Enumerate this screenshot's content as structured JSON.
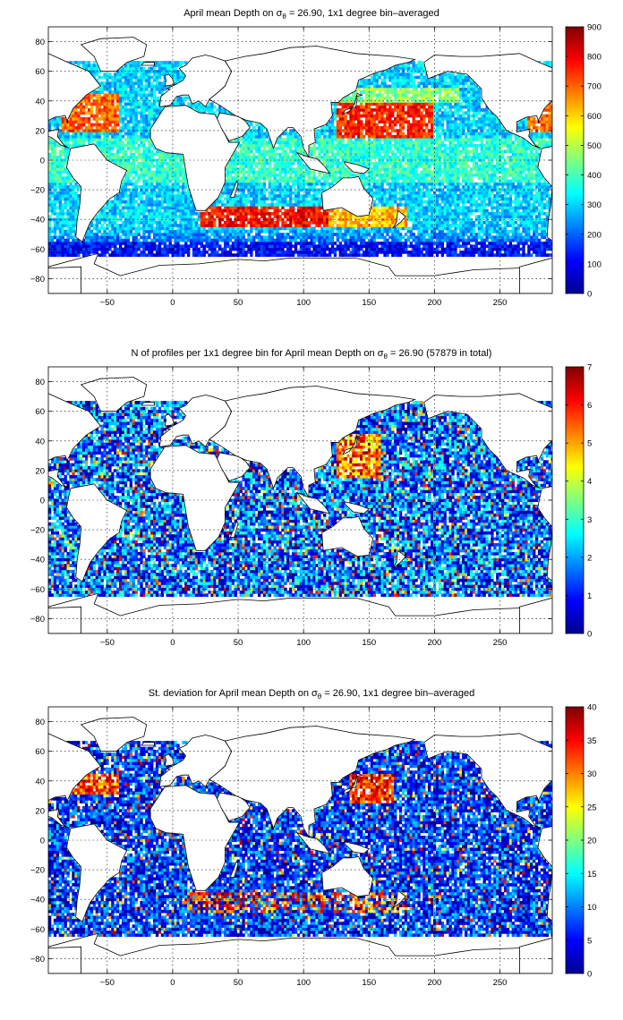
{
  "chart_data": [
    {
      "type": "heatmap",
      "title_parts": [
        "April mean Depth on ",
        "σ",
        "θ",
        " = 26.90, 1x1 degree bin–averaged"
      ],
      "xlim": [
        -95,
        290
      ],
      "ylim": [
        -90,
        90
      ],
      "xticks": [
        -50,
        0,
        50,
        100,
        150,
        200,
        250
      ],
      "yticks": [
        -80,
        -60,
        -40,
        -20,
        0,
        20,
        40,
        60,
        80
      ],
      "colorbar": {
        "min": 0,
        "max": 900,
        "ticks": [
          0,
          100,
          200,
          300,
          400,
          500,
          600,
          700,
          800,
          900
        ]
      },
      "colormap": "jet",
      "grid": true
    },
    {
      "type": "heatmap",
      "title_parts": [
        "N of profiles per 1x1 degree bin for April mean Depth on ",
        "σ",
        "θ",
        " = 26.90 (57879 in total)"
      ],
      "xlim": [
        -95,
        290
      ],
      "ylim": [
        -90,
        90
      ],
      "xticks": [
        -50,
        0,
        50,
        100,
        150,
        200,
        250
      ],
      "yticks": [
        -80,
        -60,
        -40,
        -20,
        0,
        20,
        40,
        60,
        80
      ],
      "colorbar": {
        "min": 0,
        "max": 7,
        "ticks": [
          0,
          1,
          2,
          3,
          4,
          5,
          6,
          7
        ]
      },
      "colormap": "jet",
      "grid": true
    },
    {
      "type": "heatmap",
      "title_parts": [
        "St. deviation for April mean Depth on ",
        "σ",
        "θ",
        " = 26.90, 1x1 degree bin–averaged"
      ],
      "xlim": [
        -95,
        290
      ],
      "ylim": [
        -90,
        90
      ],
      "xticks": [
        -50,
        0,
        50,
        100,
        150,
        200,
        250
      ],
      "yticks": [
        -80,
        -60,
        -40,
        -20,
        0,
        20,
        40,
        60,
        80
      ],
      "colorbar": {
        "min": 0,
        "max": 40,
        "ticks": [
          0,
          5,
          10,
          15,
          20,
          25,
          30,
          35,
          40
        ]
      },
      "colormap": "jet",
      "grid": true
    }
  ]
}
